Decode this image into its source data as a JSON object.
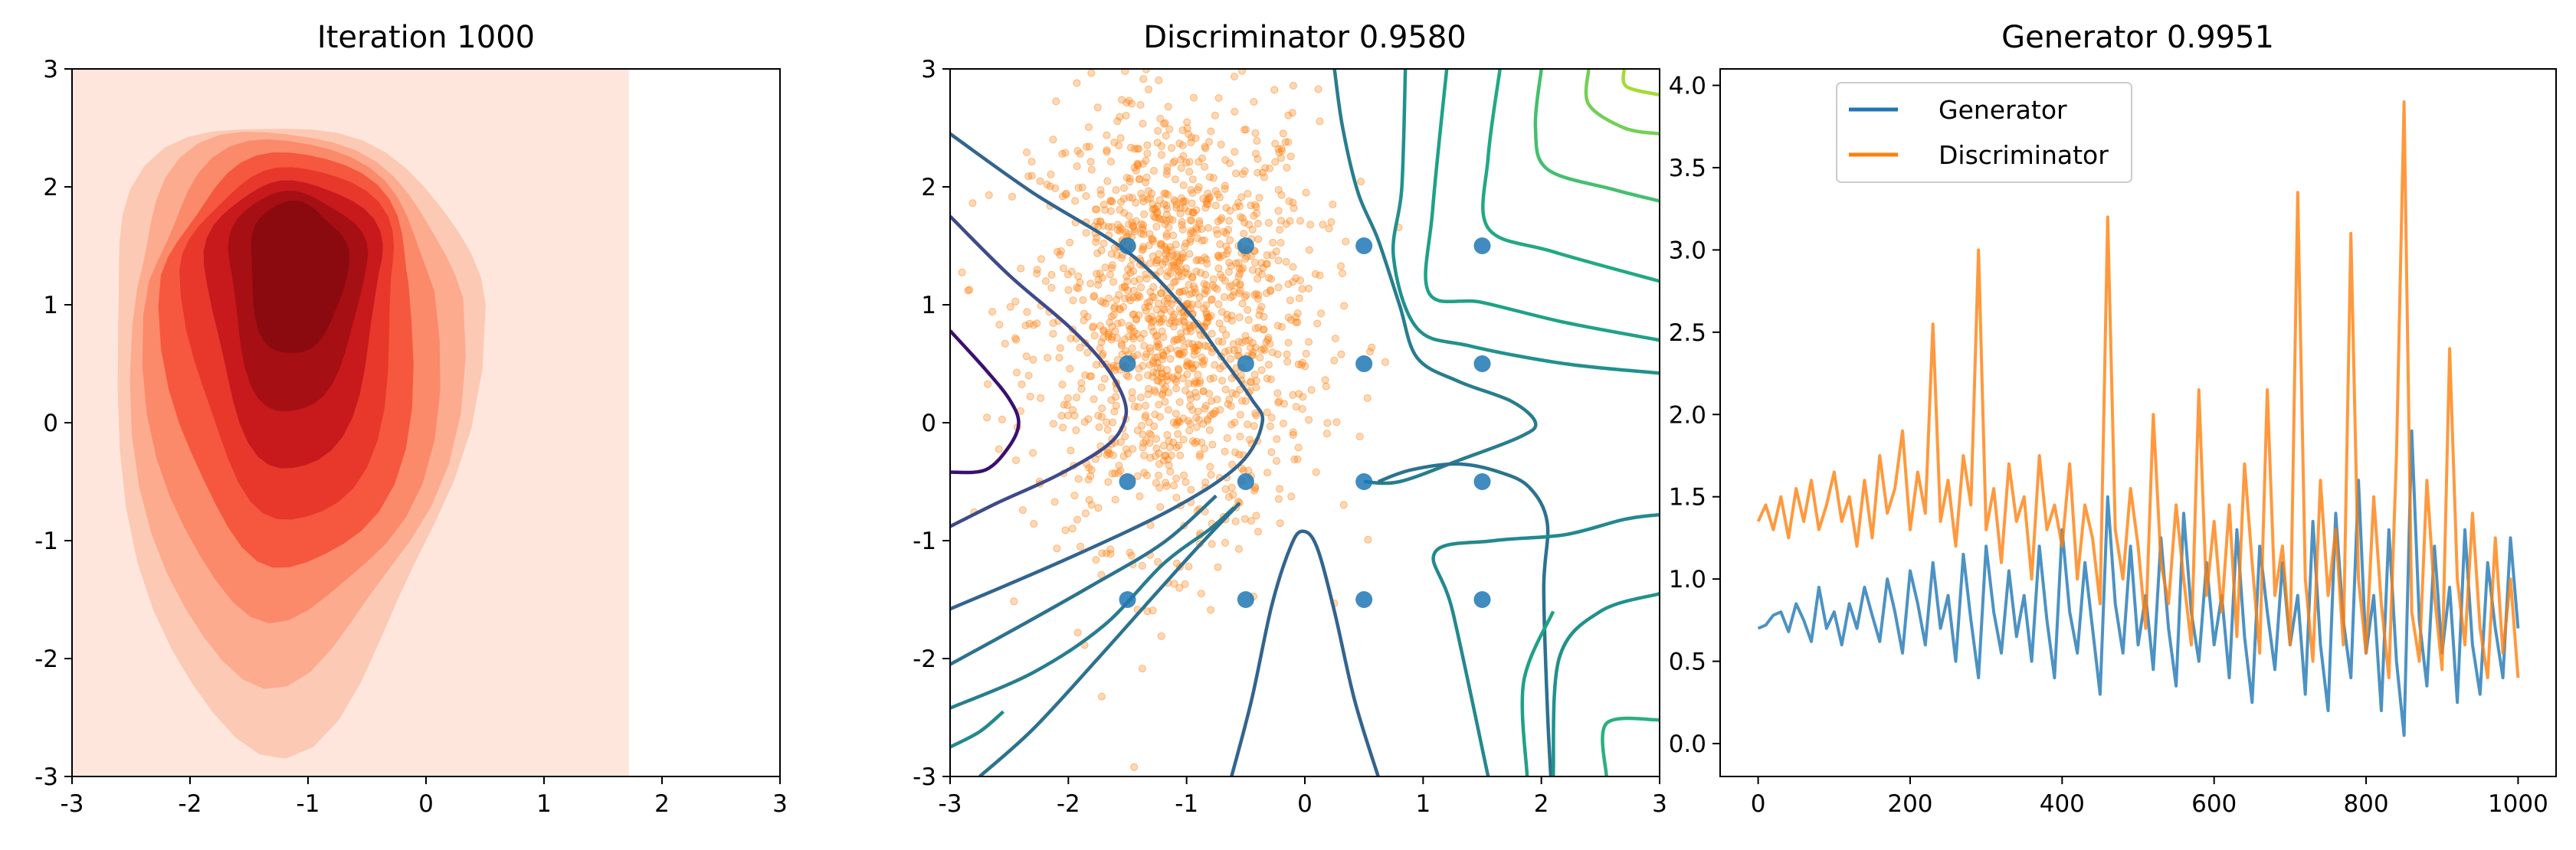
{
  "chart_data": [
    {
      "type": "heatmap",
      "title": "Iteration 1000",
      "xlim": [
        -3,
        3
      ],
      "ylim": [
        -3,
        3
      ],
      "xticks": [
        "-3",
        "-2",
        "-1",
        "0",
        "1",
        "2",
        "3"
      ],
      "yticks": [
        "-3",
        "-2",
        "-1",
        "0",
        "1",
        "2",
        "3"
      ],
      "colormap": "Reds",
      "fill_extent_x": [
        -3,
        1.72
      ],
      "density_peak": [
        -1.25,
        1.45
      ],
      "levels": 9,
      "colors": [
        "#fee6dc",
        "#fcc9b4",
        "#fcab8f",
        "#fb8a6a",
        "#f6573f",
        "#e7382b",
        "#c8191d",
        "#a60f14",
        "#8a0a0f"
      ]
    },
    {
      "type": "scatter",
      "title": "Discriminator 0.9580",
      "xlim": [
        -3,
        3
      ],
      "ylim": [
        -3,
        3
      ],
      "xticks": [
        "-3",
        "-2",
        "-1",
        "0",
        "1",
        "2",
        "3"
      ],
      "yticks": [
        "-3",
        "-2",
        "-1",
        "0",
        "1",
        "2",
        "3"
      ],
      "real_points": {
        "x": [
          -1.5,
          -0.5,
          0.5,
          1.5,
          -1.5,
          -0.5,
          0.5,
          1.5,
          -1.5,
          -0.5,
          0.5,
          1.5,
          -1.5,
          -0.5,
          0.5,
          1.5
        ],
        "y": [
          1.5,
          1.5,
          1.5,
          1.5,
          0.5,
          0.5,
          0.5,
          0.5,
          -0.5,
          -0.5,
          -0.5,
          -0.5,
          -1.5,
          -1.5,
          -1.5,
          -1.5
        ],
        "color": "#1f77b4"
      },
      "fake_points": {
        "center": [
          -1.1,
          0.9
        ],
        "spread": [
          0.6,
          0.95
        ],
        "count": 1400,
        "color": "#ff7f0e",
        "alpha": 0.3
      },
      "contours": [
        {
          "color": "#3b0f70",
          "points": [
            [
              -3,
              0.78
            ],
            [
              -2.7,
              0.45
            ],
            [
              -2.5,
              0.2
            ],
            [
              -2.42,
              0.0
            ],
            [
              -2.5,
              -0.2
            ],
            [
              -2.7,
              -0.4
            ],
            [
              -3,
              -0.42
            ]
          ]
        },
        {
          "color": "#3e4a89",
          "points": [
            [
              -3,
              1.75
            ],
            [
              -2.5,
              1.25
            ],
            [
              -2.0,
              0.82
            ],
            [
              -1.7,
              0.5
            ],
            [
              -1.53,
              0.2
            ],
            [
              -1.53,
              0.0
            ],
            [
              -1.68,
              -0.2
            ],
            [
              -2.1,
              -0.45
            ],
            [
              -2.6,
              -0.68
            ],
            [
              -3,
              -0.88
            ]
          ]
        },
        {
          "color": "#32648e",
          "points": [
            [
              -3,
              2.45
            ],
            [
              -2.3,
              1.95
            ],
            [
              -1.5,
              1.45
            ],
            [
              -1.0,
              0.95
            ],
            [
              -0.7,
              0.55
            ],
            [
              -0.45,
              0.2
            ],
            [
              -0.36,
              0.0
            ],
            [
              -0.55,
              -0.35
            ],
            [
              -1.1,
              -0.72
            ],
            [
              -2.0,
              -1.15
            ],
            [
              -3,
              -1.58
            ]
          ]
        },
        {
          "color": "#2c728e",
          "points": [
            [
              -3,
              -2.05
            ],
            [
              -2.4,
              -1.72
            ],
            [
              -1.8,
              -1.38
            ],
            [
              -1.2,
              -1.02
            ],
            [
              -0.75,
              -0.62
            ]
          ]
        },
        {
          "color": "#287d8e",
          "points": [
            [
              -3,
              -2.42
            ],
            [
              -2.3,
              -2.12
            ],
            [
              -1.7,
              -1.72
            ],
            [
              -1.2,
              -1.2
            ],
            [
              -0.8,
              -0.9
            ],
            [
              -0.6,
              -0.72
            ]
          ]
        },
        {
          "color": "#23898e",
          "points": [
            [
              -3,
              -2.75
            ],
            [
              -2.75,
              -2.62
            ],
            [
              -2.55,
              -2.45
            ]
          ]
        },
        {
          "color": "#2c728e",
          "points": [
            [
              -2.75,
              -3
            ],
            [
              -2.3,
              -2.6
            ],
            [
              -1.75,
              -2.0
            ],
            [
              -1.35,
              -1.55
            ],
            [
              -0.9,
              -1.05
            ],
            [
              -0.55,
              -0.68
            ]
          ]
        },
        {
          "color": "#32648e",
          "points": [
            [
              -0.62,
              -3
            ],
            [
              -0.45,
              -2.35
            ],
            [
              -0.28,
              -1.55
            ],
            [
              -0.12,
              -1.05
            ],
            [
              -0.02,
              -0.92
            ],
            [
              0.1,
              -1.05
            ],
            [
              0.25,
              -1.6
            ],
            [
              0.42,
              -2.35
            ],
            [
              0.62,
              -3
            ]
          ]
        },
        {
          "color": "#287d8e",
          "points": [
            [
              0.25,
              3
            ],
            [
              0.32,
              2.5
            ],
            [
              0.45,
              1.95
            ],
            [
              0.62,
              1.55
            ],
            [
              0.8,
              1.0
            ],
            [
              0.95,
              0.55
            ],
            [
              1.3,
              0.35
            ],
            [
              1.75,
              0.18
            ],
            [
              1.95,
              0.0
            ],
            [
              1.82,
              -0.12
            ],
            [
              1.3,
              -0.32
            ],
            [
              0.8,
              -0.5
            ],
            [
              0.5,
              -0.5
            ]
          ]
        },
        {
          "color": "#2c728e",
          "points": [
            [
              0.62,
              -0.5
            ],
            [
              0.9,
              -0.4
            ],
            [
              1.3,
              -0.35
            ],
            [
              1.65,
              -0.42
            ],
            [
              1.9,
              -0.55
            ],
            [
              2.05,
              -0.85
            ],
            [
              2.02,
              -1.4
            ],
            [
              2.05,
              -2.4
            ],
            [
              2.08,
              -3
            ]
          ]
        },
        {
          "color": "#21918c",
          "points": [
            [
              2.1,
              -3
            ],
            [
              2.15,
              -2.0
            ],
            [
              2.5,
              -1.6
            ],
            [
              3,
              -1.45
            ]
          ]
        },
        {
          "color": "#23898e",
          "points": [
            [
              1.55,
              -3
            ],
            [
              1.25,
              -1.6
            ],
            [
              1.1,
              -1.1
            ],
            [
              1.6,
              -1.0
            ],
            [
              2.2,
              -0.95
            ],
            [
              2.7,
              -0.82
            ],
            [
              3,
              -0.78
            ]
          ]
        },
        {
          "color": "#1fa187",
          "points": [
            [
              1.2,
              3
            ],
            [
              1.08,
              1.8
            ],
            [
              1.05,
              1.1
            ],
            [
              1.5,
              1.02
            ],
            [
              2.2,
              0.85
            ],
            [
              3,
              0.7
            ]
          ]
        },
        {
          "color": "#21918c",
          "points": [
            [
              0.85,
              3
            ],
            [
              0.82,
              2.0
            ],
            [
              0.75,
              1.4
            ],
            [
              0.95,
              0.8
            ],
            [
              1.4,
              0.65
            ],
            [
              2.2,
              0.5
            ],
            [
              3,
              0.42
            ]
          ]
        },
        {
          "color": "#22a884",
          "points": [
            [
              1.65,
              3
            ],
            [
              1.55,
              2.25
            ],
            [
              1.55,
              1.65
            ],
            [
              2.1,
              1.45
            ],
            [
              3,
              1.2
            ]
          ]
        },
        {
          "color": "#44bf70",
          "points": [
            [
              2.0,
              3
            ],
            [
              1.95,
              2.5
            ],
            [
              2.05,
              2.15
            ],
            [
              2.6,
              1.98
            ],
            [
              3,
              1.88
            ]
          ]
        },
        {
          "color": "#73d056",
          "points": [
            [
              2.4,
              3
            ],
            [
              2.4,
              2.7
            ],
            [
              2.7,
              2.5
            ],
            [
              3,
              2.45
            ]
          ]
        },
        {
          "color": "#a5db36",
          "points": [
            [
              2.7,
              3
            ],
            [
              2.72,
              2.85
            ],
            [
              3,
              2.78
            ]
          ]
        },
        {
          "color": "#2ab07f",
          "points": [
            [
              2.55,
              -3
            ],
            [
              2.55,
              -2.55
            ],
            [
              3,
              -2.52
            ]
          ]
        },
        {
          "color": "#1fa187",
          "points": [
            [
              1.88,
              -3
            ],
            [
              1.85,
              -2.2
            ],
            [
              2.1,
              -1.6
            ]
          ]
        }
      ]
    },
    {
      "type": "line",
      "title": "Generator 0.9951",
      "xlim": [
        -50,
        1050
      ],
      "ylim": [
        -0.2,
        4.1
      ],
      "xticks": [
        "0",
        "200",
        "400",
        "600",
        "800",
        "1000"
      ],
      "yticks": [
        "0.0",
        "0.5",
        "1.0",
        "1.5",
        "2.0",
        "2.5",
        "3.0",
        "3.5",
        "4.0"
      ],
      "legend": "top-left",
      "series": [
        {
          "name": "Generator",
          "color": "#1f77b4",
          "x": [
            0,
            10,
            20,
            30,
            40,
            50,
            60,
            70,
            80,
            90,
            100,
            110,
            120,
            130,
            140,
            150,
            160,
            170,
            180,
            190,
            200,
            210,
            220,
            230,
            240,
            250,
            260,
            270,
            280,
            290,
            300,
            310,
            320,
            330,
            340,
            350,
            360,
            370,
            380,
            390,
            400,
            410,
            420,
            430,
            440,
            450,
            460,
            470,
            480,
            490,
            500,
            510,
            520,
            530,
            540,
            550,
            560,
            570,
            580,
            590,
            600,
            610,
            620,
            630,
            640,
            650,
            660,
            670,
            680,
            690,
            700,
            710,
            720,
            730,
            740,
            750,
            760,
            770,
            780,
            790,
            800,
            810,
            820,
            830,
            840,
            850,
            860,
            870,
            880,
            890,
            900,
            910,
            920,
            930,
            940,
            950,
            960,
            970,
            980,
            990,
            1000
          ],
          "values": [
            0.7,
            0.72,
            0.78,
            0.8,
            0.68,
            0.85,
            0.75,
            0.62,
            0.95,
            0.7,
            0.8,
            0.6,
            0.85,
            0.7,
            0.95,
            0.78,
            0.62,
            1.0,
            0.8,
            0.55,
            1.05,
            0.85,
            0.6,
            1.1,
            0.7,
            0.9,
            0.5,
            1.15,
            0.75,
            0.4,
            1.2,
            0.8,
            0.55,
            1.05,
            0.65,
            0.9,
            0.5,
            1.2,
            0.75,
            0.4,
            1.3,
            0.8,
            0.55,
            1.1,
            0.7,
            0.3,
            1.5,
            0.85,
            0.55,
            1.2,
            0.6,
            0.9,
            0.45,
            1.25,
            0.7,
            0.35,
            1.4,
            0.8,
            0.5,
            1.1,
            0.6,
            0.9,
            0.4,
            1.3,
            0.65,
            0.25,
            1.2,
            0.8,
            0.45,
            1.1,
            0.6,
            0.9,
            0.3,
            1.35,
            0.6,
            0.2,
            1.4,
            0.75,
            0.4,
            1.6,
            0.55,
            0.9,
            0.2,
            1.3,
            0.5,
            0.05,
            1.9,
            0.75,
            0.35,
            1.2,
            0.55,
            0.95,
            0.25,
            1.3,
            0.6,
            0.3,
            1.1,
            0.7,
            0.4,
            1.25,
            0.7
          ]
        },
        {
          "name": "Discriminator",
          "color": "#ff7f0e",
          "x": [
            0,
            10,
            20,
            30,
            40,
            50,
            60,
            70,
            80,
            90,
            100,
            110,
            120,
            130,
            140,
            150,
            160,
            170,
            180,
            190,
            200,
            210,
            220,
            230,
            240,
            250,
            260,
            270,
            280,
            290,
            300,
            310,
            320,
            330,
            340,
            350,
            360,
            370,
            380,
            390,
            400,
            410,
            420,
            430,
            440,
            450,
            460,
            470,
            480,
            490,
            500,
            510,
            520,
            530,
            540,
            550,
            560,
            570,
            580,
            590,
            600,
            610,
            620,
            630,
            640,
            650,
            660,
            670,
            680,
            690,
            700,
            710,
            720,
            730,
            740,
            750,
            760,
            770,
            780,
            790,
            800,
            810,
            820,
            830,
            840,
            850,
            860,
            870,
            880,
            890,
            900,
            910,
            920,
            930,
            940,
            950,
            960,
            970,
            980,
            990,
            1000
          ],
          "values": [
            1.35,
            1.45,
            1.3,
            1.5,
            1.25,
            1.55,
            1.35,
            1.6,
            1.3,
            1.45,
            1.65,
            1.35,
            1.5,
            1.2,
            1.6,
            1.25,
            1.75,
            1.4,
            1.55,
            1.9,
            1.3,
            1.65,
            1.4,
            2.55,
            1.35,
            1.6,
            1.2,
            1.75,
            1.45,
            3.0,
            1.3,
            1.55,
            1.1,
            1.7,
            1.35,
            1.5,
            1.0,
            1.75,
            1.3,
            1.45,
            1.2,
            1.7,
            1.0,
            1.45,
            1.25,
            0.85,
            3.2,
            1.3,
            1.0,
            1.55,
            1.2,
            0.7,
            2.0,
            1.1,
            0.85,
            1.45,
            1.0,
            0.6,
            2.15,
            0.9,
            1.35,
            0.8,
            1.45,
            0.65,
            1.7,
            1.1,
            0.55,
            2.15,
            0.9,
            1.2,
            0.6,
            3.35,
            1.0,
            0.5,
            1.6,
            0.9,
            1.3,
            0.6,
            3.1,
            1.0,
            0.55,
            1.5,
            0.85,
            0.4,
            1.75,
            3.9,
            0.8,
            0.5,
            1.6,
            0.9,
            0.45,
            2.4,
            1.0,
            0.6,
            1.4,
            0.7,
            0.4,
            1.25,
            0.55,
            1.0,
            0.4
          ]
        }
      ]
    }
  ]
}
